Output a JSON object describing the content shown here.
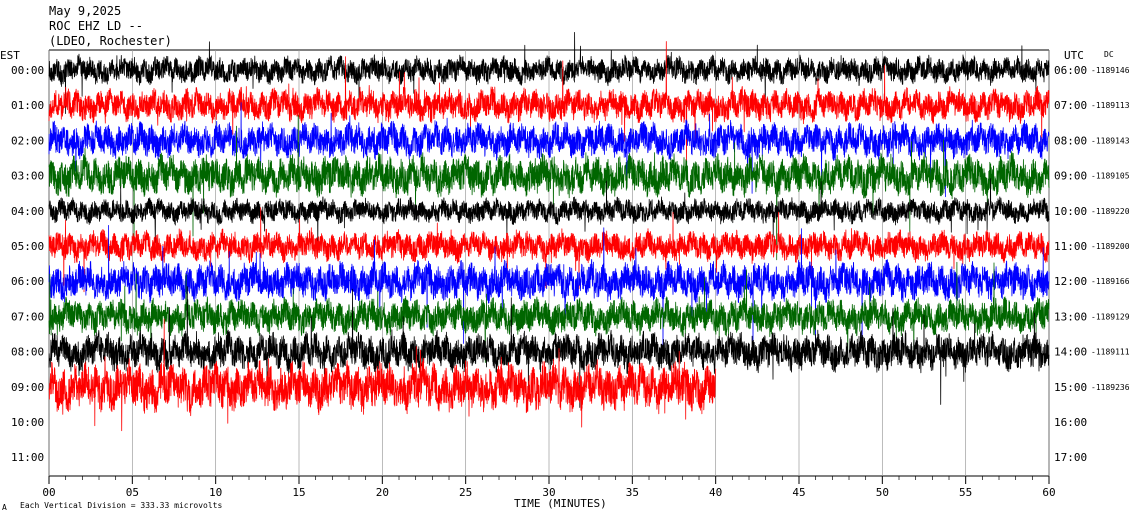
{
  "header": {
    "date": "May 9,2025",
    "station": "ROC EHZ LD --",
    "network": "(LDEO, Rochester)"
  },
  "labels": {
    "est": "EST",
    "utc": "UTC",
    "dc": "DC",
    "x_axis_title": "TIME (MINUTES)",
    "scale_note": "Each Vertical Division = 333.33 microvolts",
    "corner_mark": "A"
  },
  "chart_data": {
    "type": "line",
    "title": "",
    "xlabel": "TIME (MINUTES)",
    "ylabel": "",
    "x_range": [
      0,
      60
    ],
    "x_ticks": [
      "00",
      "05",
      "10",
      "15",
      "20",
      "25",
      "30",
      "35",
      "40",
      "45",
      "50",
      "55",
      "60"
    ],
    "rows": [
      {
        "est": "00:00",
        "utc": "06:00",
        "dc": "-1189146",
        "color": "#000000",
        "amp": 10,
        "end": 60
      },
      {
        "est": "01:00",
        "utc": "07:00",
        "dc": "-1189113",
        "color": "#ff0000",
        "amp": 12,
        "end": 60
      },
      {
        "est": "02:00",
        "utc": "08:00",
        "dc": "-1189143",
        "color": "#0000ff",
        "amp": 13,
        "end": 60
      },
      {
        "est": "03:00",
        "utc": "09:00",
        "dc": "-1189105",
        "color": "#006600",
        "amp": 15,
        "end": 60
      },
      {
        "est": "04:00",
        "utc": "10:00",
        "dc": "-1189220",
        "color": "#000000",
        "amp": 9,
        "end": 60
      },
      {
        "est": "05:00",
        "utc": "11:00",
        "dc": "-1189200",
        "color": "#ff0000",
        "amp": 11,
        "end": 60
      },
      {
        "est": "06:00",
        "utc": "12:00",
        "dc": "-1189166",
        "color": "#0000ff",
        "amp": 14,
        "end": 60
      },
      {
        "est": "07:00",
        "utc": "13:00",
        "dc": "-1189129",
        "color": "#006600",
        "amp": 13,
        "end": 60
      },
      {
        "est": "08:00",
        "utc": "14:00",
        "dc": "-1189111",
        "color": "#000000",
        "amp": 14,
        "end": 60
      },
      {
        "est": "09:00",
        "utc": "15:00",
        "dc": "-1189236",
        "color": "#ff0000",
        "amp": 18,
        "end": 40
      },
      {
        "est": "10:00",
        "utc": "16:00",
        "dc": "",
        "color": "#0000ff",
        "amp": 0,
        "end": 0
      },
      {
        "est": "11:00",
        "utc": "17:00",
        "dc": "",
        "color": "#006600",
        "amp": 0,
        "end": 0
      }
    ]
  }
}
